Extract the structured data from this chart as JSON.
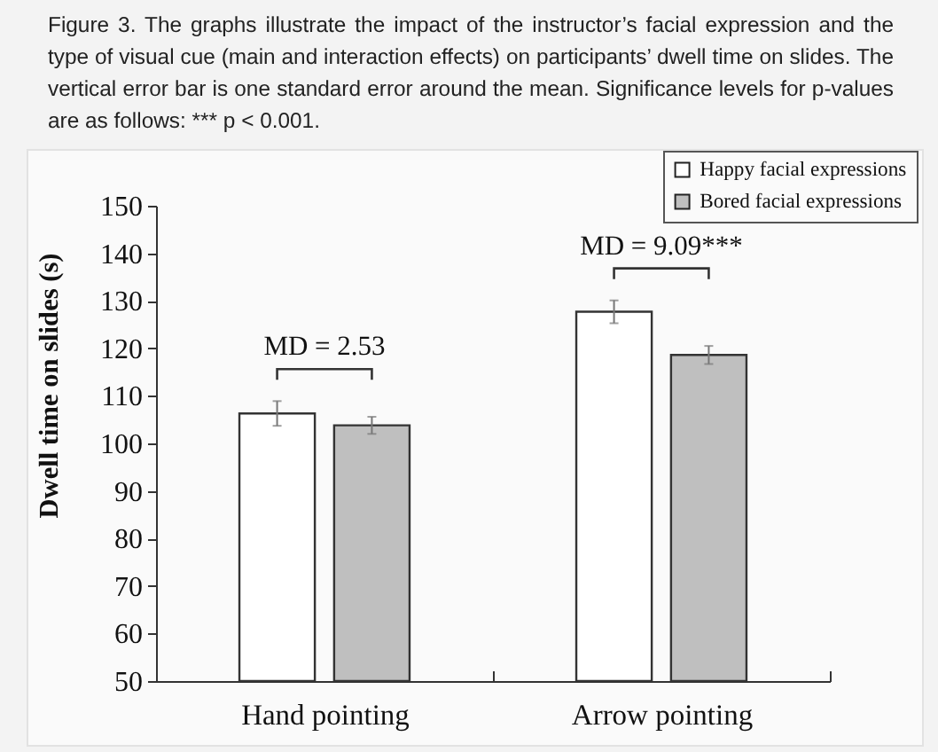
{
  "chart_data": {
    "type": "bar",
    "title": "Figure 3. The graphs illustrate the impact of the instructor’s facial expression and the type of visual cue (main and interaction effects) on participants’ dwell time on slides. The vertical error bar is one standard error around the mean. Significance levels for p-values are as follows: *** p < 0.001.",
    "ylabel": "Dwell time on slides (s)",
    "categories": [
      "Hand pointing",
      "Arrow pointing"
    ],
    "series": [
      {
        "name": "Happy facial expressions",
        "color": "#ffffff",
        "values": [
          106.3,
          127.7
        ],
        "errors": [
          2.6,
          2.4
        ]
      },
      {
        "name": "Bored facial expressions",
        "color": "#bfbfbf",
        "values": [
          103.8,
          118.6
        ],
        "errors": [
          1.8,
          1.9
        ]
      }
    ],
    "ylim": [
      50,
      150
    ],
    "yticks": [
      50,
      60,
      70,
      80,
      90,
      100,
      110,
      120,
      130,
      140,
      150
    ],
    "grid": false,
    "legend": "top right",
    "annotations": [
      "MD = 2.53",
      "MD = 9.09***"
    ]
  }
}
